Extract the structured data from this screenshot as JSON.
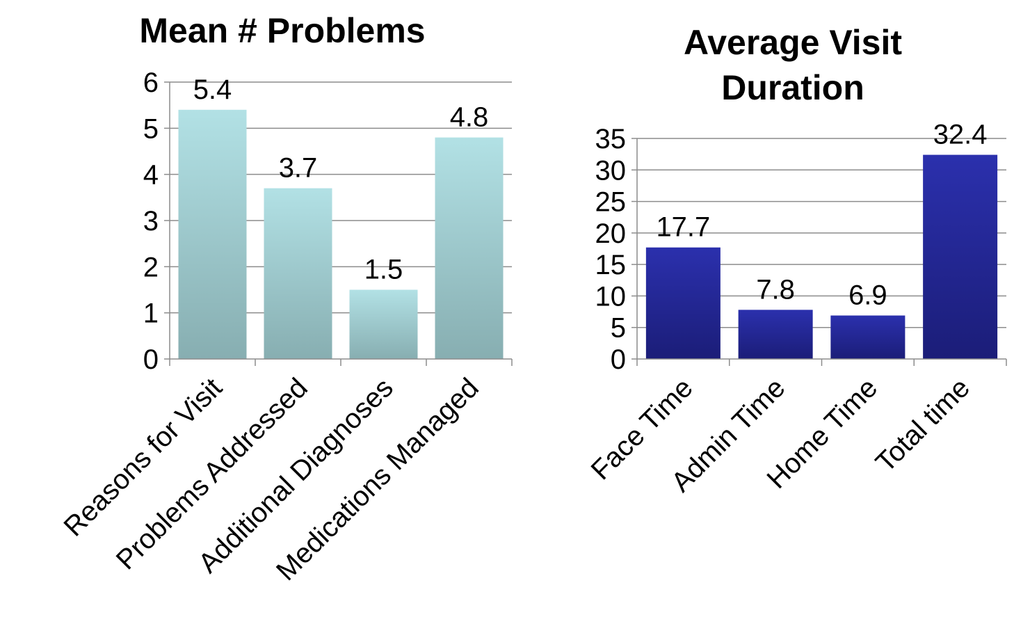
{
  "chart_data": [
    {
      "type": "bar",
      "title": "Mean # Problems",
      "categories": [
        "Reasons for Visit",
        "Problems Addressed",
        "Additional Diagnoses",
        "Medications Managed"
      ],
      "values": [
        5.4,
        3.7,
        1.5,
        4.8
      ],
      "data_labels": [
        "5.4",
        "3.7",
        "1.5",
        "4.8"
      ],
      "ylim": [
        0,
        6
      ],
      "yticks": [
        "0",
        "1",
        "2",
        "3",
        "4",
        "5",
        "6"
      ],
      "grid": true,
      "bar_color": "#a9d6da",
      "bar_color_dark": "#87aeb1"
    },
    {
      "type": "bar",
      "title": "Average Visit Duration",
      "title_lines": [
        "Average Visit",
        "Duration"
      ],
      "categories": [
        "Face Time",
        "Admin Time",
        "Home Time",
        "Total time"
      ],
      "values": [
        17.7,
        7.8,
        6.9,
        32.4
      ],
      "data_labels": [
        "17.7",
        "7.8",
        "6.9",
        "32.4"
      ],
      "ylim": [
        0,
        35
      ],
      "yticks": [
        "0",
        "5",
        "10",
        "15",
        "20",
        "25",
        "30",
        "35"
      ],
      "grid": true,
      "bar_color": "#2c2fa8",
      "bar_color_dark": "#1d1f7e"
    }
  ]
}
